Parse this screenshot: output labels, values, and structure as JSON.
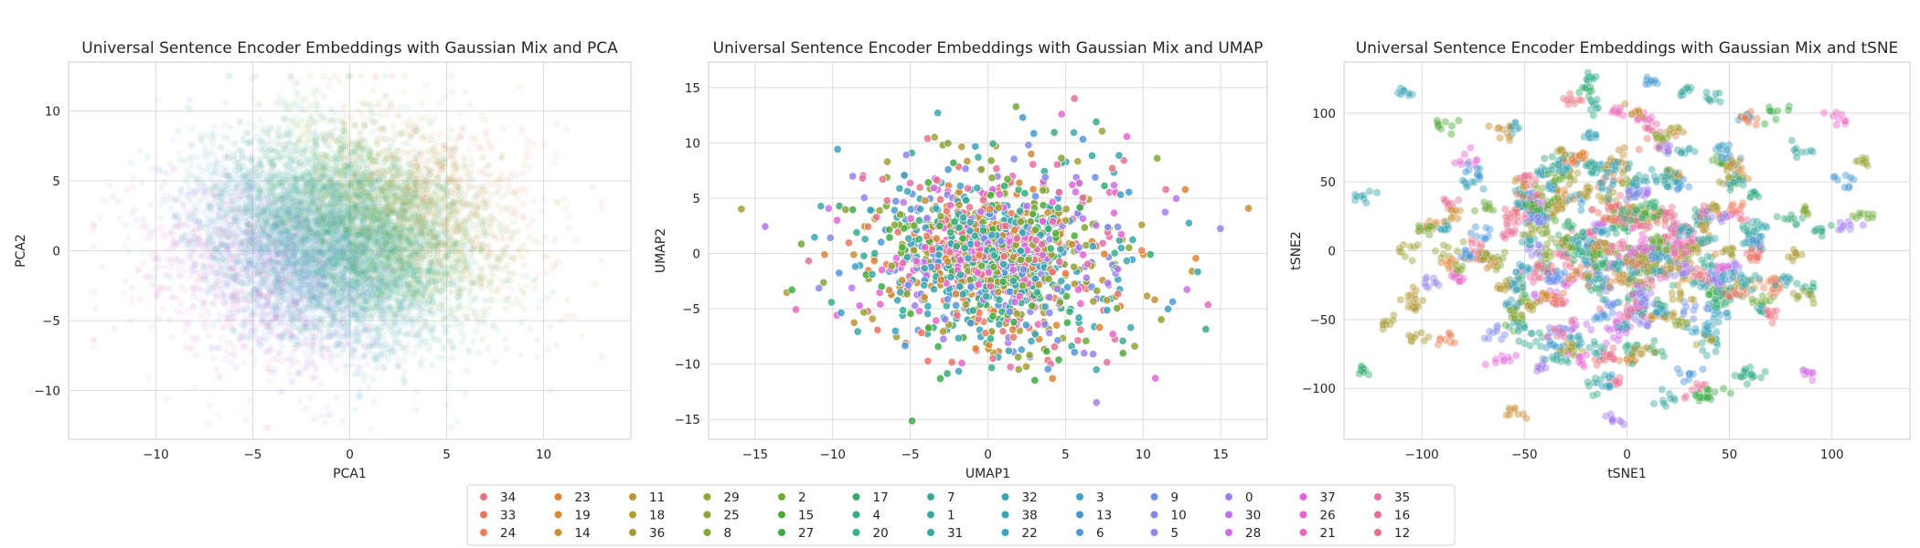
{
  "chart_data": [
    {
      "type": "scatter",
      "title": "Universal Sentence Encoder Embeddings with Gaussian Mix and PCA",
      "xlabel": "PCA1",
      "ylabel": "PCA2",
      "xlim": [
        -14.5,
        14.5
      ],
      "ylim": [
        -13.5,
        13.5
      ],
      "xticks": [
        -10,
        -5,
        0,
        5,
        10
      ],
      "yticks": [
        -10,
        -5,
        0,
        5,
        10
      ],
      "grid": true,
      "point_opacity": 0.08,
      "point_count": 9000,
      "spread": [
        3.9,
        3.9
      ],
      "center": [
        -0.5,
        0.8
      ],
      "range": [
        [
          -13.2,
          13.0
        ],
        [
          -12.8,
          12.5
        ]
      ],
      "group_sequence": [
        "16",
        "12",
        "35",
        "21",
        "26",
        "37",
        "28",
        "30",
        "0",
        "5",
        "10",
        "9",
        "6",
        "13",
        "3",
        "22",
        "38",
        "32",
        "31",
        "1",
        "7",
        "20",
        "4",
        "17",
        "27",
        "15",
        "2",
        "8",
        "25",
        "29",
        "36",
        "18",
        "11",
        "14",
        "19",
        "23",
        "24",
        "33",
        "34"
      ],
      "group_weight": 0.35,
      "group_axis": [
        1.0,
        0.6
      ]
    },
    {
      "type": "scatter",
      "title": "Universal Sentence Encoder Embeddings with Gaussian Mix and UMAP",
      "xlabel": "UMAP1",
      "ylabel": "UMAP2",
      "xlim": [
        -18,
        18
      ],
      "ylim": [
        -16.8,
        17.3
      ],
      "xticks": [
        -15,
        -10,
        -5,
        0,
        5,
        10,
        15
      ],
      "yticks": [
        -15,
        -10,
        -5,
        0,
        5,
        10,
        15
      ],
      "grid": true,
      "point_opacity": 0.85,
      "point_count": 1500,
      "spread": [
        4.9,
        4.7
      ],
      "center": [
        0.5,
        0.0
      ],
      "range": [
        [
          -16.5,
          16.8
        ],
        [
          -15.2,
          15.8
        ]
      ],
      "core_fraction": 0.35,
      "core_spread": [
        2.2,
        2.0
      ]
    },
    {
      "type": "scatter",
      "title": "Universal Sentence Encoder Embeddings with Gaussian Mix and tSNE",
      "xlabel": "tSNE1",
      "ylabel": "tSNE2",
      "xlim": [
        -138,
        138
      ],
      "ylim": [
        -137,
        137
      ],
      "xticks": [
        -100,
        -50,
        0,
        50,
        100
      ],
      "yticks": [
        -100,
        -50,
        0,
        50,
        100
      ],
      "grid": true,
      "point_opacity": 0.45,
      "cluster_count": 330,
      "points_per_cluster": 9,
      "spread": [
        48,
        46
      ],
      "center": [
        -5,
        5
      ],
      "range": [
        [
          -128,
          130
        ],
        [
          -125,
          125
        ]
      ],
      "cluster_radius": 2.6
    }
  ],
  "legend": {
    "placement": "bottom-center",
    "columns": [
      [
        {
          "label": "34",
          "color": "#e8727d"
        },
        {
          "label": "33",
          "color": "#ea7460"
        },
        {
          "label": "24",
          "color": "#ef7d52"
        }
      ],
      [
        {
          "label": "23",
          "color": "#de8435"
        },
        {
          "label": "19",
          "color": "#d58a35"
        },
        {
          "label": "14",
          "color": "#c88e35"
        }
      ],
      [
        {
          "label": "11",
          "color": "#b99735"
        },
        {
          "label": "18",
          "color": "#b09b35"
        },
        {
          "label": "36",
          "color": "#a49e35"
        }
      ],
      [
        {
          "label": "29",
          "color": "#9aa135"
        },
        {
          "label": "25",
          "color": "#8ca335"
        },
        {
          "label": "8",
          "color": "#80a635"
        }
      ],
      [
        {
          "label": "2",
          "color": "#6bab35"
        },
        {
          "label": "15",
          "color": "#4ca935"
        },
        {
          "label": "27",
          "color": "#3aad47"
        }
      ],
      [
        {
          "label": "17",
          "color": "#36ad6d"
        },
        {
          "label": "4",
          "color": "#36ad7d"
        },
        {
          "label": "20",
          "color": "#37ad8a"
        }
      ],
      [
        {
          "label": "7",
          "color": "#38aa95"
        },
        {
          "label": "1",
          "color": "#39a99d"
        },
        {
          "label": "31",
          "color": "#39a8a4"
        }
      ],
      [
        {
          "label": "32",
          "color": "#3aa7ac"
        },
        {
          "label": "38",
          "color": "#3ba4b3"
        },
        {
          "label": "22",
          "color": "#3ca3bb"
        }
      ],
      [
        {
          "label": "3",
          "color": "#3da2c3"
        },
        {
          "label": "13",
          "color": "#4399d0"
        },
        {
          "label": "6",
          "color": "#4f96de"
        }
      ],
      [
        {
          "label": "9",
          "color": "#6a8fe8"
        },
        {
          "label": "10",
          "color": "#8189ea"
        },
        {
          "label": "5",
          "color": "#9582eb"
        }
      ],
      [
        {
          "label": "0",
          "color": "#a47cea"
        },
        {
          "label": "30",
          "color": "#bf72ea"
        },
        {
          "label": "28",
          "color": "#d26be6"
        }
      ],
      [
        {
          "label": "37",
          "color": "#e563d8"
        },
        {
          "label": "26",
          "color": "#e865c7"
        },
        {
          "label": "21",
          "color": "#e86ab8"
        }
      ],
      [
        {
          "label": "35",
          "color": "#e86ea6"
        },
        {
          "label": "16",
          "color": "#e86f9a"
        },
        {
          "label": "12",
          "color": "#e8718d"
        }
      ]
    ]
  }
}
